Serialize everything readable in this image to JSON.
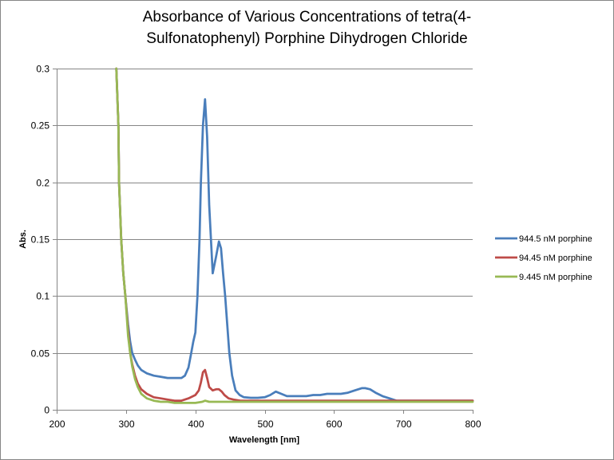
{
  "chart_data": {
    "type": "line",
    "title": "Absorbance of Various Concentrations of tetra(4-\nSulfonatophenyl) Porphine Dihydrogen Chloride",
    "xlabel": "Wavelength [nm]",
    "ylabel": "Abs.",
    "xlim": [
      200,
      800
    ],
    "ylim": [
      0,
      0.3
    ],
    "xticks": [
      200,
      300,
      400,
      500,
      600,
      700,
      800
    ],
    "yticks": [
      0,
      0.05,
      0.1,
      0.15,
      0.2,
      0.25,
      0.3
    ],
    "xtick_labels": [
      "200",
      "300",
      "400",
      "500",
      "600",
      "700",
      "800"
    ],
    "ytick_labels": [
      "0",
      "0.05",
      "0.1",
      "0.15",
      "0.2",
      "0.25",
      "0.3"
    ],
    "grid": "horizontal",
    "legend_position": "right",
    "series": [
      {
        "name": "944.5 nM porphine",
        "color": "#4A7EBB",
        "x": [
          286,
          289,
          290,
          293,
          296,
          299,
          303,
          306,
          309,
          313,
          317,
          322,
          330,
          340,
          350,
          360,
          370,
          380,
          385,
          390,
          394,
          397,
          400,
          403,
          406,
          408,
          411,
          414,
          417,
          420,
          425,
          430,
          434,
          437,
          440,
          443,
          446,
          449,
          453,
          458,
          464,
          470,
          480,
          490,
          500,
          508,
          516,
          524,
          532,
          540,
          550,
          560,
          570,
          580,
          590,
          600,
          610,
          620,
          630,
          640,
          645,
          652,
          660,
          670,
          680,
          690,
          700,
          720,
          740,
          760,
          780,
          800
        ],
        "y": [
          0.3,
          0.25,
          0.2,
          0.15,
          0.12,
          0.1,
          0.075,
          0.06,
          0.05,
          0.044,
          0.039,
          0.035,
          0.032,
          0.03,
          0.029,
          0.028,
          0.028,
          0.028,
          0.03,
          0.037,
          0.05,
          0.06,
          0.068,
          0.1,
          0.15,
          0.2,
          0.25,
          0.273,
          0.24,
          0.18,
          0.12,
          0.135,
          0.148,
          0.142,
          0.12,
          0.1,
          0.075,
          0.05,
          0.03,
          0.017,
          0.013,
          0.011,
          0.0105,
          0.0105,
          0.011,
          0.013,
          0.016,
          0.014,
          0.012,
          0.012,
          0.012,
          0.012,
          0.013,
          0.013,
          0.014,
          0.014,
          0.014,
          0.015,
          0.017,
          0.019,
          0.019,
          0.018,
          0.015,
          0.012,
          0.01,
          0.008,
          0.008,
          0.008,
          0.008,
          0.008,
          0.008,
          0.008
        ]
      },
      {
        "name": "94.45 nM porphine",
        "color": "#BE4B48",
        "x": [
          286,
          289,
          290,
          293,
          296,
          299,
          303,
          306,
          309,
          313,
          317,
          322,
          330,
          340,
          350,
          360,
          370,
          380,
          390,
          400,
          405,
          408,
          411,
          414,
          417,
          420,
          425,
          430,
          434,
          438,
          442,
          448,
          455,
          465,
          480,
          500,
          550,
          600,
          650,
          700,
          750,
          800
        ],
        "y": [
          0.3,
          0.25,
          0.2,
          0.15,
          0.12,
          0.1,
          0.07,
          0.05,
          0.04,
          0.03,
          0.023,
          0.018,
          0.014,
          0.011,
          0.01,
          0.009,
          0.008,
          0.008,
          0.01,
          0.013,
          0.017,
          0.024,
          0.033,
          0.035,
          0.028,
          0.02,
          0.017,
          0.018,
          0.018,
          0.016,
          0.013,
          0.01,
          0.009,
          0.008,
          0.008,
          0.008,
          0.008,
          0.008,
          0.008,
          0.008,
          0.008,
          0.008
        ]
      },
      {
        "name": "9.445 nM porphine",
        "color": "#98B954",
        "x": [
          286,
          289,
          290,
          293,
          296,
          299,
          303,
          306,
          309,
          313,
          317,
          322,
          330,
          340,
          350,
          360,
          370,
          380,
          390,
          400,
          410,
          414,
          420,
          430,
          440,
          450,
          470,
          500,
          550,
          600,
          650,
          700,
          750,
          800
        ],
        "y": [
          0.3,
          0.25,
          0.2,
          0.15,
          0.12,
          0.1,
          0.065,
          0.05,
          0.038,
          0.027,
          0.02,
          0.014,
          0.01,
          0.008,
          0.007,
          0.007,
          0.006,
          0.006,
          0.006,
          0.006,
          0.007,
          0.008,
          0.007,
          0.007,
          0.007,
          0.007,
          0.007,
          0.007,
          0.007,
          0.007,
          0.007,
          0.007,
          0.007,
          0.007
        ]
      }
    ]
  }
}
